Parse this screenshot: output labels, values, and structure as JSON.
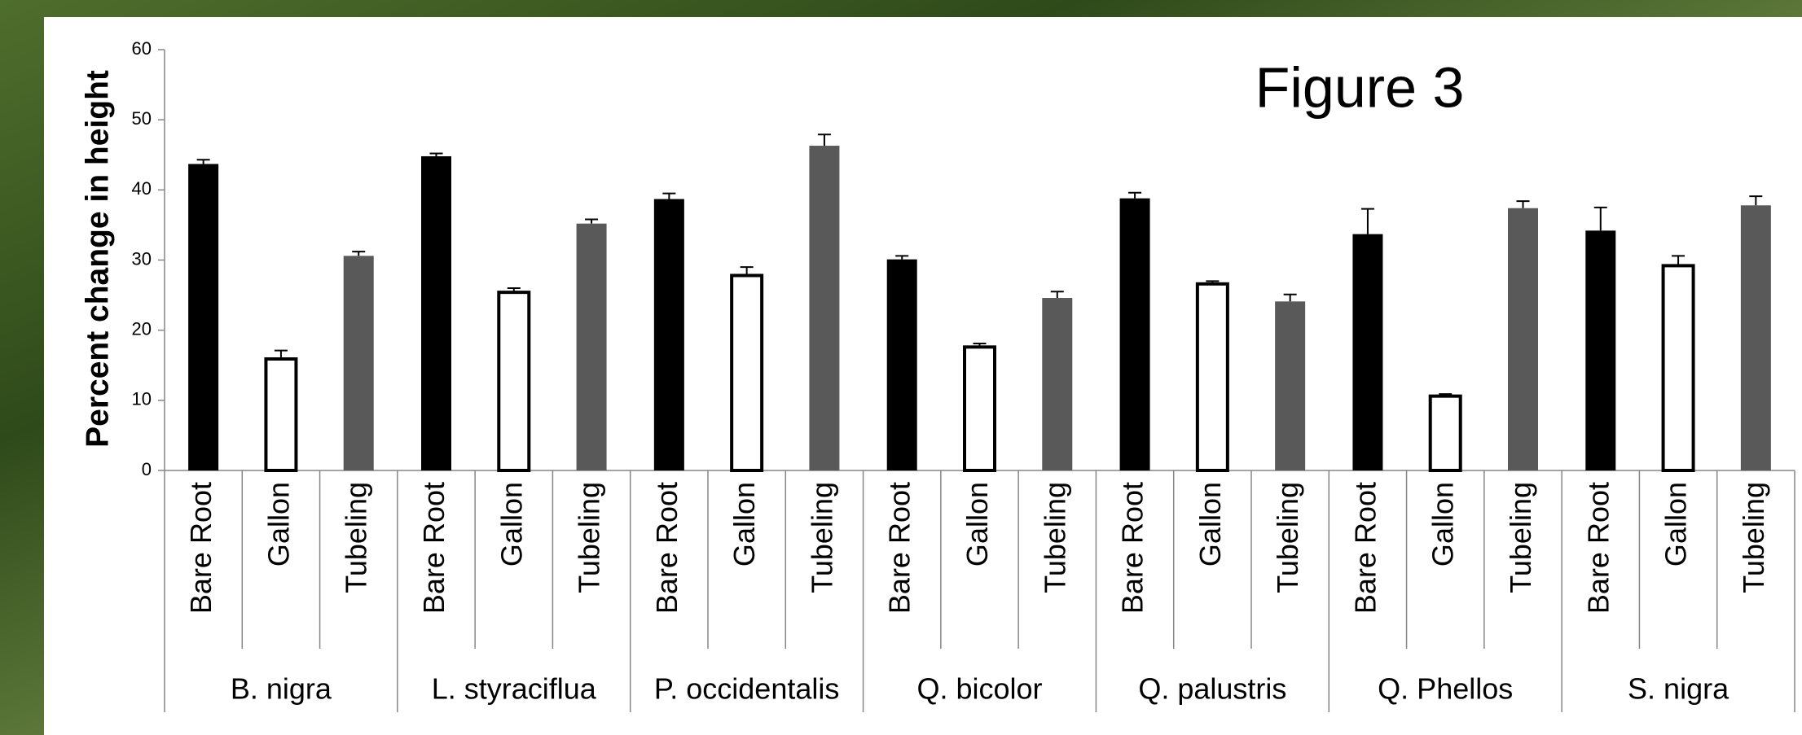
{
  "chart_data": {
    "type": "bar",
    "title": "Figure 3",
    "y_label": "Percent change in height",
    "categories": [
      "B. nigra",
      "L. styraciflua",
      "P. occidentalis",
      "Q. bicolor",
      "Q. palustris",
      "Q. Phellos",
      "S. nigra"
    ],
    "series": [
      {
        "name": "Bare Root",
        "color": "#000000",
        "values": [
          43.7,
          44.8,
          38.7,
          30.1,
          38.8,
          33.7,
          34.2
        ],
        "errors": [
          0.6,
          0.4,
          0.8,
          0.5,
          0.8,
          3.6,
          3.3
        ]
      },
      {
        "name": "Gallon",
        "color": "#ffffff",
        "values": [
          15.9,
          25.4,
          27.8,
          17.6,
          26.6,
          10.6,
          29.2
        ],
        "errors": [
          1.2,
          0.6,
          1.2,
          0.5,
          0.4,
          0.3,
          1.4
        ]
      },
      {
        "name": "Tubeling",
        "color": "#595959",
        "values": [
          30.6,
          35.2,
          46.3,
          24.6,
          24.1,
          37.4,
          37.8
        ],
        "errors": [
          0.6,
          0.6,
          1.6,
          0.9,
          1.0,
          1.0,
          1.3
        ]
      }
    ],
    "ylim": [
      0,
      60
    ],
    "yticks": [
      0,
      10,
      20,
      30,
      40,
      50,
      60
    ]
  }
}
